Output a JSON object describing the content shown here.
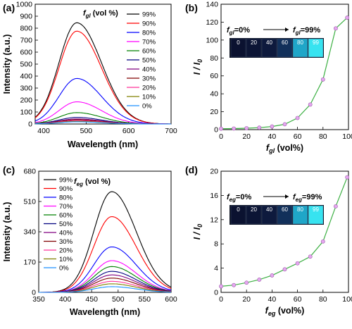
{
  "chart_data": [
    {
      "id": "a",
      "type": "line",
      "panel_label": "(a)",
      "xlabel": "Wavelength (nm)",
      "ylabel": "Intensity (a.u.)",
      "xlim": [
        380,
        700
      ],
      "ylim": [
        0,
        1000
      ],
      "xticks": [
        400,
        500,
        600,
        700
      ],
      "yticks": [
        0,
        100,
        200,
        300,
        400,
        500,
        600,
        700,
        800,
        900,
        1000
      ],
      "legend_title": "f",
      "legend_title_sub": "gl",
      "legend_title_suffix": " (vol %)",
      "legend_position": "top-right",
      "peak_x": 478,
      "sigma_left": 42,
      "sigma_right": 58,
      "series": [
        {
          "name": "99%",
          "peak": 845,
          "color": "#000000"
        },
        {
          "name": "90%",
          "peak": 775,
          "color": "#ff0000"
        },
        {
          "name": "80%",
          "peak": 380,
          "color": "#0000ff"
        },
        {
          "name": "70%",
          "peak": 185,
          "color": "#ff00ff"
        },
        {
          "name": "60%",
          "peak": 95,
          "color": "#008000"
        },
        {
          "name": "50%",
          "peak": 55,
          "color": "#000080"
        },
        {
          "name": "40%",
          "peak": 42,
          "color": "#800080"
        },
        {
          "name": "30%",
          "peak": 35,
          "color": "#800000"
        },
        {
          "name": "20%",
          "peak": 28,
          "color": "#ff3399"
        },
        {
          "name": "10%",
          "peak": 22,
          "color": "#808000"
        },
        {
          "name": "0%",
          "peak": 18,
          "color": "#1e90ff"
        }
      ]
    },
    {
      "id": "b",
      "type": "line",
      "panel_label": "(b)",
      "xlabel": "f",
      "xlabel_sub": "gl",
      "xlabel_suffix": " (vol%)",
      "ylabel": "I / I",
      "ylabel_sub": "0",
      "xlim": [
        0,
        100
      ],
      "ylim": [
        0,
        140
      ],
      "xticks": [
        0,
        20,
        40,
        60,
        80,
        100
      ],
      "yticks": [
        0,
        20,
        40,
        60,
        80,
        100,
        120,
        140
      ],
      "x": [
        0,
        10,
        20,
        30,
        40,
        50,
        60,
        70,
        80,
        90,
        99
      ],
      "y": [
        1,
        1.2,
        1.6,
        2.2,
        3.5,
        6,
        13,
        28,
        56,
        113,
        125
      ],
      "line_color": "#3cb043",
      "marker_color": "#e6a8f0",
      "inset": {
        "from_prefix": "f",
        "from_sub": "gl",
        "from_suffix": "=0%",
        "to_prefix": "f",
        "to_sub": "gl",
        "to_suffix": "=99%",
        "vials": [
          "0",
          "20",
          "40",
          "60",
          "80",
          "99"
        ]
      }
    },
    {
      "id": "c",
      "type": "line",
      "panel_label": "(c)",
      "xlabel": "Wavelength (nm)",
      "ylabel": "Intensity (a.u.)",
      "xlim": [
        350,
        600
      ],
      "ylim": [
        0,
        680
      ],
      "xticks": [
        350,
        400,
        450,
        500,
        550,
        600
      ],
      "yticks": [
        0,
        170,
        340,
        510,
        680
      ],
      "legend_title": "f",
      "legend_title_sub": "eg",
      "legend_title_suffix": " (vol %)",
      "legend_position": "top-left",
      "peak_x": 488,
      "sigma_left": 34,
      "sigma_right": 46,
      "series": [
        {
          "name": "99%",
          "peak": 565,
          "color": "#000000"
        },
        {
          "name": "90%",
          "peak": 425,
          "color": "#ff0000"
        },
        {
          "name": "80%",
          "peak": 255,
          "color": "#0000ff"
        },
        {
          "name": "70%",
          "peak": 178,
          "color": "#ff00ff"
        },
        {
          "name": "60%",
          "peak": 145,
          "color": "#008000"
        },
        {
          "name": "50%",
          "peak": 118,
          "color": "#000080"
        },
        {
          "name": "40%",
          "peak": 98,
          "color": "#800080"
        },
        {
          "name": "30%",
          "peak": 80,
          "color": "#800000"
        },
        {
          "name": "20%",
          "peak": 62,
          "color": "#ff3399"
        },
        {
          "name": "10%",
          "peak": 48,
          "color": "#808000"
        },
        {
          "name": "0%",
          "peak": 32,
          "color": "#1e90ff"
        }
      ]
    },
    {
      "id": "d",
      "type": "line",
      "panel_label": "(d)",
      "xlabel": "f",
      "xlabel_sub": "eg",
      "xlabel_suffix": " (vol%)",
      "ylabel": "I / I",
      "ylabel_sub": "0",
      "xlim": [
        0,
        100
      ],
      "ylim": [
        0,
        20
      ],
      "xticks": [
        0,
        20,
        40,
        60,
        80,
        100
      ],
      "yticks": [
        0,
        4,
        8,
        12,
        16,
        20
      ],
      "x": [
        0,
        10,
        20,
        30,
        40,
        50,
        60,
        70,
        80,
        90,
        99
      ],
      "y": [
        1,
        1.2,
        1.6,
        2.1,
        2.8,
        3.8,
        4.8,
        5.9,
        8.4,
        14.2,
        19
      ],
      "line_color": "#3cb043",
      "marker_color": "#e6a8f0",
      "inset": {
        "from_prefix": "f",
        "from_sub": "eg",
        "from_suffix": "=0%",
        "to_prefix": "f",
        "to_sub": "eg",
        "to_suffix": "=99%",
        "vials": [
          "0",
          "20",
          "40",
          "60",
          "80",
          "99"
        ]
      }
    }
  ]
}
